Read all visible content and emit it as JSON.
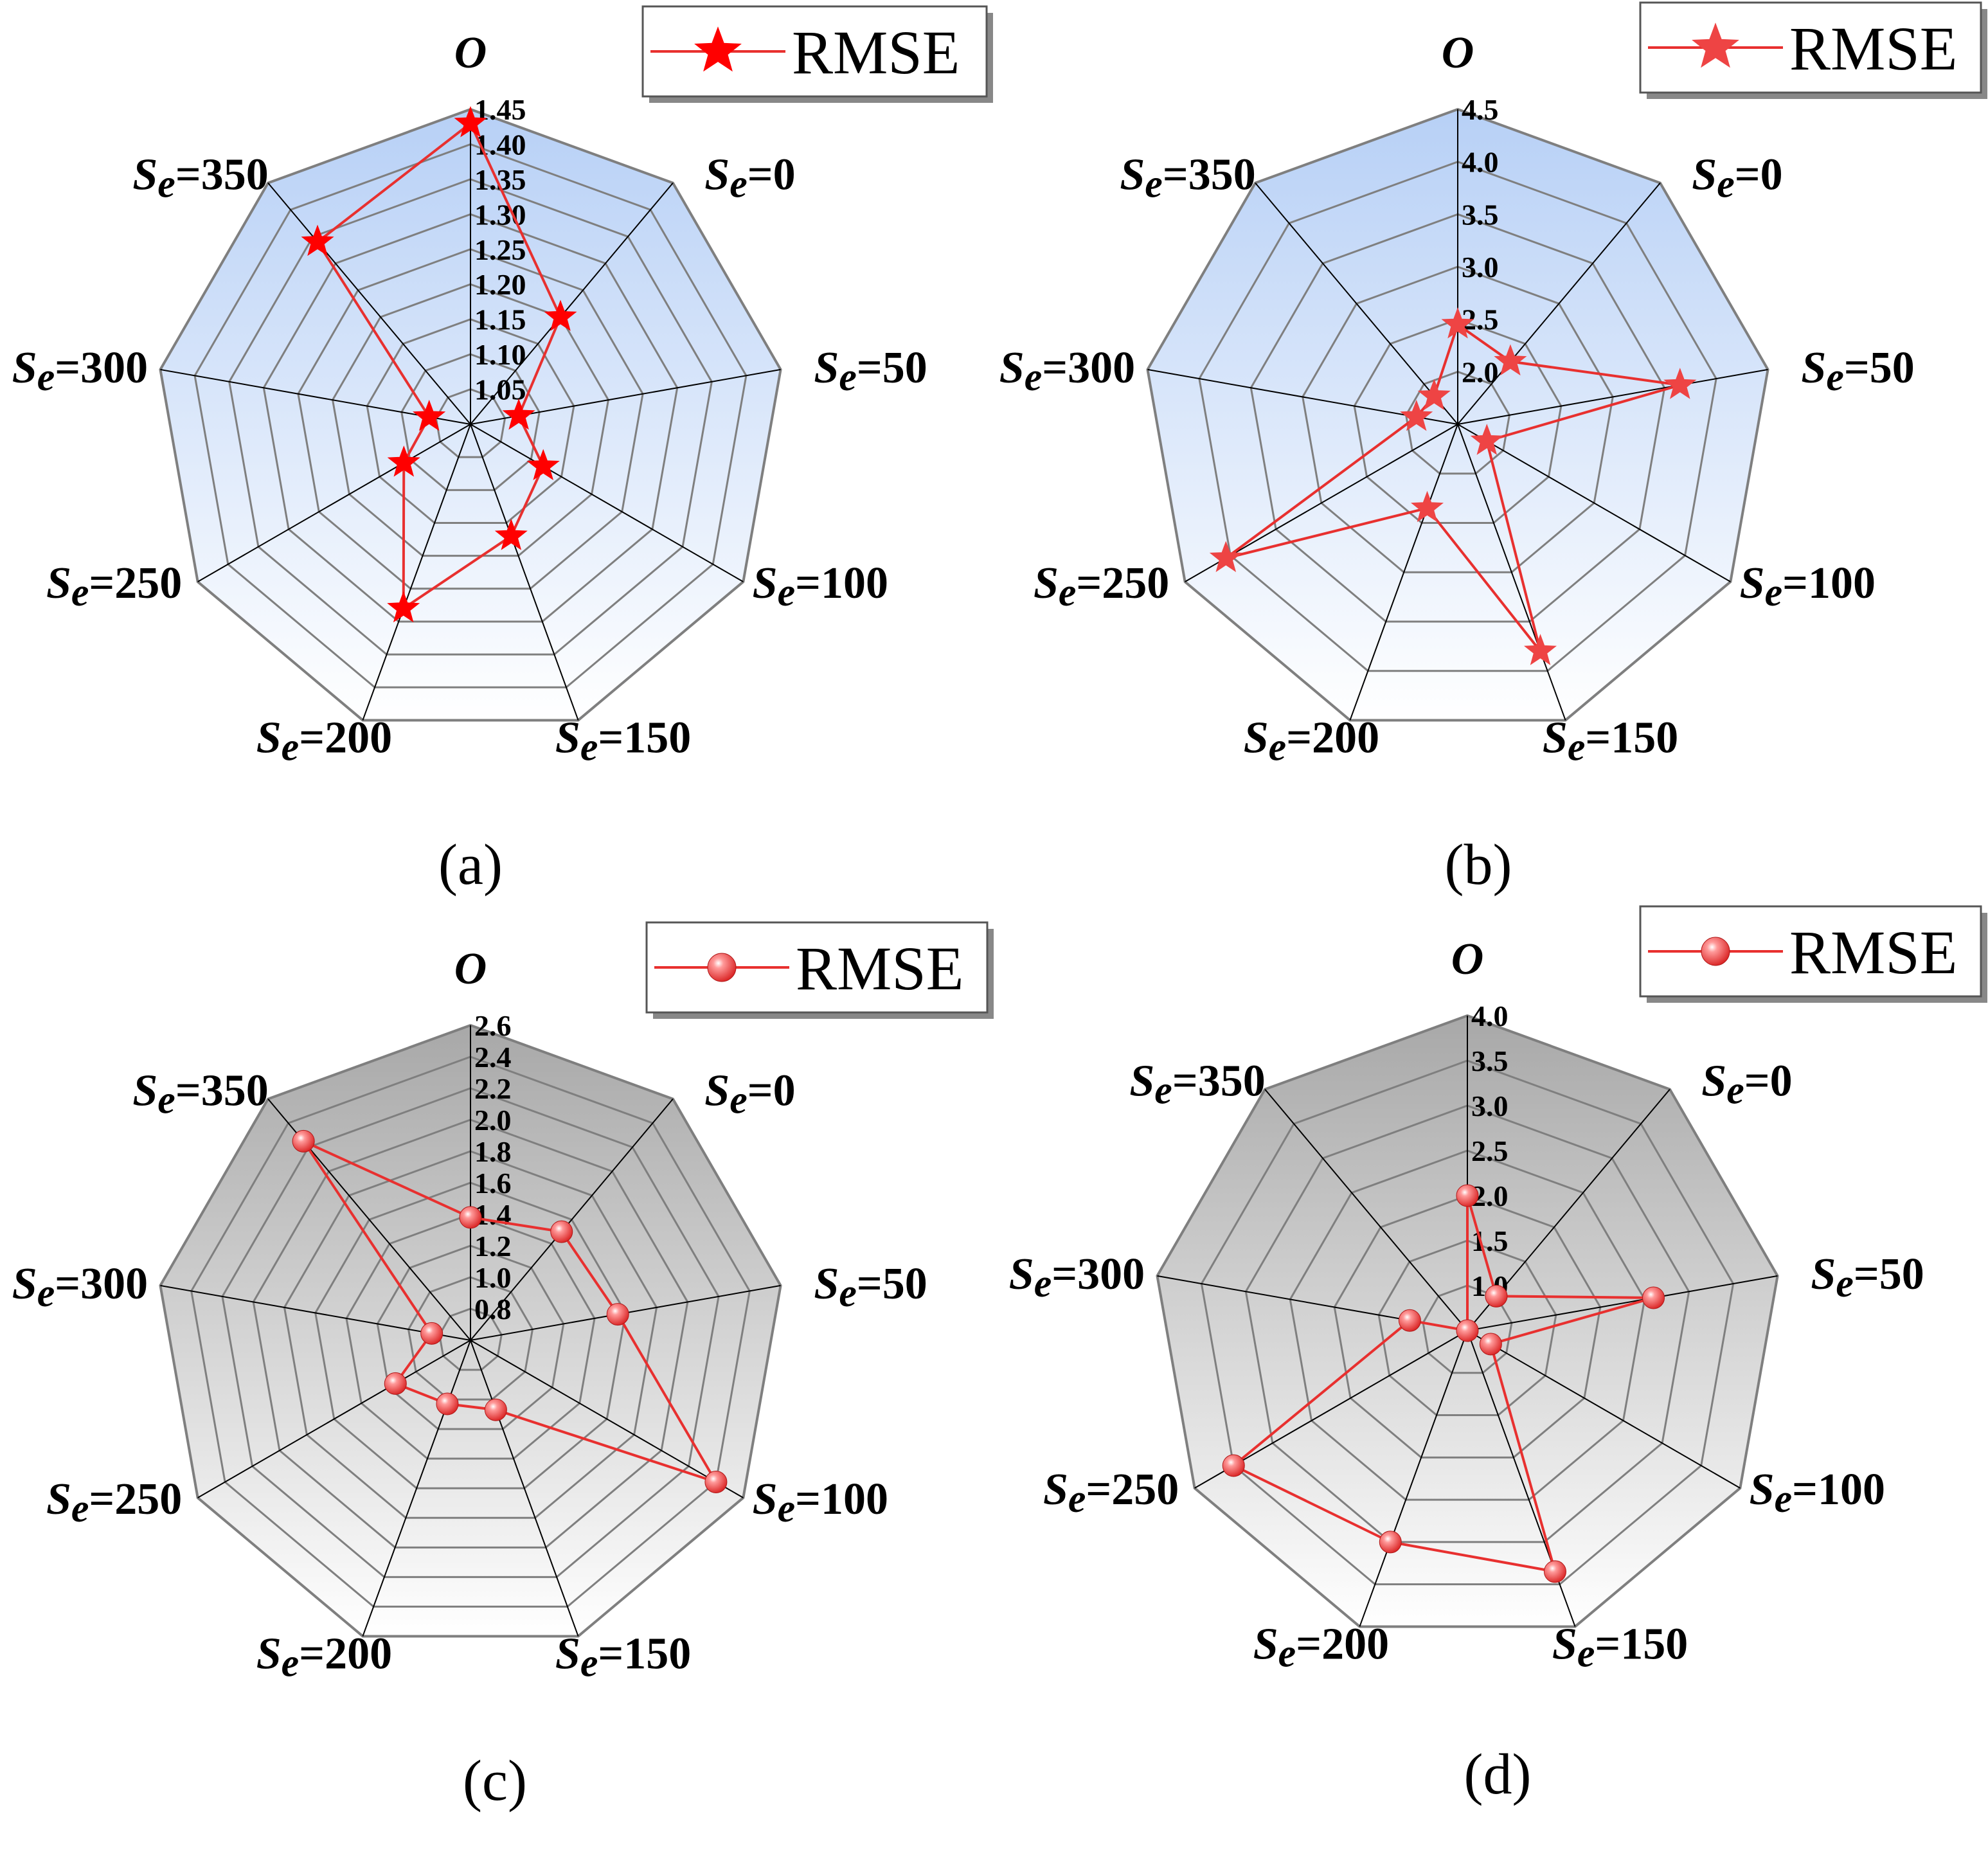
{
  "colors": {
    "series": "#e8302f",
    "marker_fill_star_a": "#ff0000",
    "marker_fill_star_b": "#ee4444",
    "gradient_blue_top": "#b7d0f6",
    "gradient_blue_bottom": "#ffffff",
    "gradient_gray_top": "#a8a8a8",
    "gradient_gray_bottom": "#ffffff",
    "ring": "#7f7f7f",
    "spoke": "#000000"
  },
  "category_prefix": "S",
  "category_subscript": "e",
  "chart_data": [
    {
      "panel": "(a)",
      "type": "radar",
      "background": "blue-gradient",
      "marker": "star",
      "legend": "RMSE",
      "legend_placement": "top-right",
      "categories": [
        "O",
        "=0",
        "=50",
        "=100",
        "=150",
        "=200",
        "=250",
        "=300",
        "=350"
      ],
      "axis_min": 1.0,
      "axis_max": 1.45,
      "ticks": [
        "1.05",
        "1.10",
        "1.15",
        "1.20",
        "1.25",
        "1.30",
        "1.35",
        "1.40",
        "1.45"
      ],
      "tick_values": [
        1.05,
        1.1,
        1.15,
        1.2,
        1.25,
        1.3,
        1.35,
        1.4,
        1.45
      ],
      "series": [
        {
          "name": "RMSE",
          "values": [
            1.43,
            1.2,
            1.07,
            1.12,
            1.17,
            1.28,
            1.11,
            1.06,
            1.34
          ]
        }
      ]
    },
    {
      "panel": "(b)",
      "type": "radar",
      "background": "blue-gradient",
      "marker": "star",
      "legend": "RMSE",
      "legend_placement": "top-right",
      "categories": [
        "O",
        "=0",
        "=50",
        "=100",
        "=150",
        "=200",
        "=250",
        "=300",
        "=350"
      ],
      "axis_min": 1.5,
      "axis_max": 4.5,
      "ticks": [
        "2.0",
        "2.5",
        "3.0",
        "3.5",
        "4.0",
        "4.5"
      ],
      "tick_values": [
        2.0,
        2.5,
        3.0,
        3.5,
        4.0,
        4.5
      ],
      "series": [
        {
          "name": "RMSE",
          "values": [
            2.45,
            2.28,
            3.65,
            1.82,
            3.8,
            2.35,
            4.05,
            1.9,
            1.85
          ]
        }
      ]
    },
    {
      "panel": "(c)",
      "type": "radar",
      "background": "gray-gradient",
      "marker": "sphere",
      "legend": "RMSE",
      "legend_placement": "top-right",
      "categories": [
        "O",
        "=0",
        "=50",
        "=100",
        "=150",
        "=200",
        "=250",
        "=300",
        "=350"
      ],
      "axis_min": 0.6,
      "axis_max": 2.6,
      "ticks": [
        "0.8",
        "1.0",
        "1.2",
        "1.4",
        "1.6",
        "1.8",
        "2.0",
        "2.2",
        "2.4",
        "2.6"
      ],
      "tick_values": [
        0.8,
        1.0,
        1.2,
        1.4,
        1.6,
        1.8,
        2.0,
        2.2,
        2.4,
        2.6
      ],
      "series": [
        {
          "name": "RMSE",
          "values": [
            1.38,
            1.5,
            1.55,
            2.4,
            1.07,
            1.03,
            1.15,
            0.85,
            2.25
          ]
        }
      ]
    },
    {
      "panel": "(d)",
      "type": "radar",
      "background": "gray-gradient",
      "marker": "sphere",
      "legend": "RMSE",
      "legend_placement": "top-right",
      "categories": [
        "O",
        "=0",
        "=50",
        "=100",
        "=150",
        "=200",
        "=250",
        "=300",
        "=350"
      ],
      "axis_min": 0.5,
      "axis_max": 4.0,
      "ticks": [
        "1.0",
        "1.5",
        "2.0",
        "2.5",
        "3.0",
        "3.5",
        "4.0"
      ],
      "tick_values": [
        1.0,
        1.5,
        2.0,
        2.5,
        3.0,
        3.5,
        4.0
      ],
      "series": [
        {
          "name": "RMSE",
          "values": [
            2.0,
            1.0,
            2.6,
            0.8,
            3.35,
            3.0,
            3.5,
            1.15,
            0.5
          ]
        }
      ]
    }
  ]
}
